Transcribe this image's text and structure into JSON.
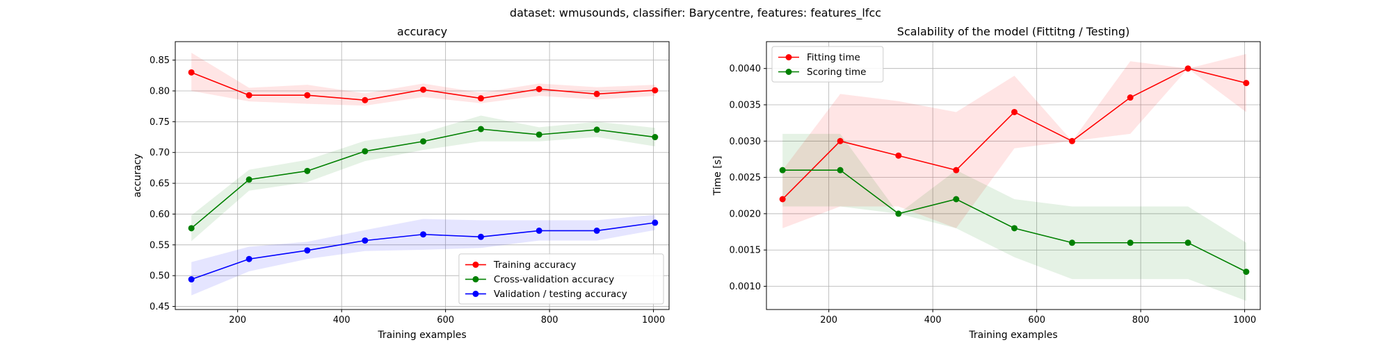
{
  "figure": {
    "suptitle": "dataset: wmusounds, classifier: Barycentre, features: features_lfcc"
  },
  "chart_data": [
    {
      "type": "line",
      "title": "accuracy",
      "xlabel": "Training examples",
      "ylabel": "accuracy",
      "xlim": [
        80,
        1030
      ],
      "ylim": [
        0.445,
        0.88
      ],
      "xticks": [
        200,
        400,
        600,
        800,
        1000
      ],
      "yticks": [
        0.45,
        0.5,
        0.55,
        0.6,
        0.65,
        0.7,
        0.75,
        0.8,
        0.85
      ],
      "ytick_decimals": 2,
      "grid": true,
      "legend_position": "lower right",
      "x": [
        111,
        222,
        334,
        445,
        557,
        668,
        780,
        891,
        1003
      ],
      "series": [
        {
          "name": "Training accuracy",
          "color": "#ff0000",
          "values": [
            0.83,
            0.793,
            0.793,
            0.785,
            0.802,
            0.788,
            0.803,
            0.795,
            0.801
          ],
          "band_lower": [
            0.8,
            0.783,
            0.779,
            0.776,
            0.79,
            0.78,
            0.792,
            0.786,
            0.792
          ],
          "band_upper": [
            0.862,
            0.805,
            0.81,
            0.796,
            0.812,
            0.797,
            0.812,
            0.806,
            0.81
          ]
        },
        {
          "name": "Cross-validation accuracy",
          "color": "#008000",
          "values": [
            0.577,
            0.656,
            0.67,
            0.702,
            0.718,
            0.738,
            0.729,
            0.737,
            0.725
          ],
          "band_lower": [
            0.556,
            0.638,
            0.652,
            0.686,
            0.704,
            0.718,
            0.718,
            0.725,
            0.71
          ],
          "band_upper": [
            0.598,
            0.672,
            0.688,
            0.719,
            0.732,
            0.76,
            0.741,
            0.75,
            0.74
          ]
        },
        {
          "name": "Validation / testing accuracy",
          "color": "#0000ff",
          "values": [
            0.494,
            0.527,
            0.541,
            0.557,
            0.567,
            0.563,
            0.573,
            0.573,
            0.586
          ],
          "band_lower": [
            0.468,
            0.507,
            0.527,
            0.54,
            0.542,
            0.545,
            0.557,
            0.557,
            0.574
          ],
          "band_upper": [
            0.522,
            0.547,
            0.555,
            0.574,
            0.592,
            0.59,
            0.59,
            0.59,
            0.599
          ]
        }
      ]
    },
    {
      "type": "line",
      "title": "Scalability of the model (Fittitng / Testing)",
      "xlabel": "Training examples",
      "ylabel": "Time [s]",
      "xlim": [
        80,
        1030
      ],
      "ylim": [
        0.00068,
        0.00437
      ],
      "xticks": [
        200,
        400,
        600,
        800,
        1000
      ],
      "yticks": [
        0.001,
        0.0015,
        0.002,
        0.0025,
        0.003,
        0.0035,
        0.004
      ],
      "ytick_decimals": 4,
      "grid": true,
      "legend_position": "upper left",
      "x": [
        111,
        222,
        334,
        445,
        557,
        668,
        780,
        891,
        1003
      ],
      "series": [
        {
          "name": "Fitting time",
          "color": "#ff0000",
          "values": [
            0.0022,
            0.003,
            0.0028,
            0.0026,
            0.0034,
            0.003,
            0.0036,
            0.004,
            0.0038
          ],
          "band_lower": [
            0.0018,
            0.0021,
            0.0021,
            0.0018,
            0.0029,
            0.003,
            0.0031,
            0.004,
            0.0034
          ],
          "band_upper": [
            0.0026,
            0.00365,
            0.00355,
            0.0034,
            0.0039,
            0.003,
            0.0041,
            0.004,
            0.0042
          ]
        },
        {
          "name": "Scoring time",
          "color": "#008000",
          "values": [
            0.0026,
            0.0026,
            0.002,
            0.0022,
            0.0018,
            0.0016,
            0.0016,
            0.0016,
            0.0012
          ],
          "band_lower": [
            0.0021,
            0.0021,
            0.002,
            0.0018,
            0.0014,
            0.0011,
            0.0011,
            0.0011,
            0.0008
          ],
          "band_upper": [
            0.0031,
            0.0031,
            0.002,
            0.0026,
            0.0022,
            0.0021,
            0.0021,
            0.0021,
            0.0016
          ]
        }
      ]
    }
  ]
}
